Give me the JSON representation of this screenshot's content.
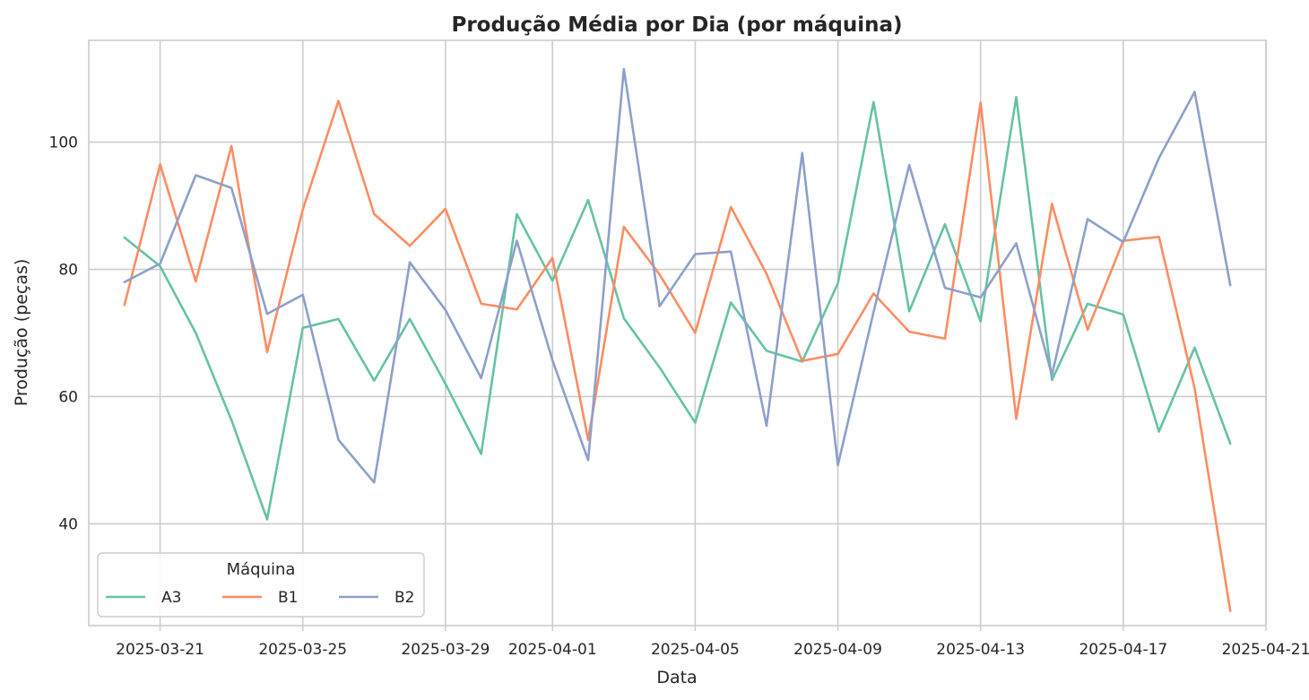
{
  "chart_data": {
    "type": "line",
    "title": "Produção Média por Dia (por máquina)",
    "xlabel": "Data",
    "ylabel": "Produção (peças)",
    "x_start": "2025-03-20",
    "x_range": [
      "2025-03-19",
      "2025-04-21"
    ],
    "xtick_labels": [
      "2025-03-21",
      "2025-03-25",
      "2025-03-29",
      "2025-04-01",
      "2025-04-05",
      "2025-04-09",
      "2025-04-13",
      "2025-04-17",
      "2025-04-21"
    ],
    "xtick_dates": [
      "2025-03-21",
      "2025-03-25",
      "2025-03-29",
      "2025-04-01",
      "2025-04-05",
      "2025-04-09",
      "2025-04-13",
      "2025-04-17",
      "2025-04-21"
    ],
    "ylim": [
      24,
      116
    ],
    "yticks": [
      40,
      60,
      80,
      100
    ],
    "grid": true,
    "legend": {
      "title": "Máquina",
      "placement": "bottom-left",
      "ncol": 3
    },
    "series": [
      {
        "name": "A3",
        "color": "#66c2a5",
        "values": [
          85,
          80.5,
          70,
          56.3,
          40.7,
          70.8,
          72.2,
          62.5,
          72.2,
          62,
          51,
          88.7,
          78.2,
          90.9,
          72.3,
          64.6,
          55.9,
          74.8,
          67.2,
          65.5,
          77.8,
          106.3,
          73.4,
          87.1,
          71.8,
          107.1,
          62.6,
          74.6,
          72.9,
          54.5,
          67.7,
          52.6
        ]
      },
      {
        "name": "B1",
        "color": "#fc8d62",
        "values": [
          74.4,
          96.5,
          78.1,
          99.4,
          67,
          89.4,
          106.5,
          88.7,
          83.7,
          89.5,
          74.6,
          73.7,
          81.8,
          53.2,
          86.7,
          79.2,
          70,
          89.8,
          79.3,
          65.6,
          66.7,
          76.2,
          70.2,
          69.1,
          106.2,
          56.5,
          90.3,
          70.5,
          84.5,
          85.1,
          61.3,
          26.3
        ]
      },
      {
        "name": "B2",
        "color": "#8da0cb",
        "values": [
          78,
          80.9,
          94.8,
          92.8,
          73,
          76,
          53.2,
          46.5,
          81.1,
          73.6,
          62.9,
          84.5,
          65.7,
          50,
          111.5,
          74.2,
          82.4,
          82.8,
          55.4,
          98.3,
          49.2,
          73.3,
          96.4,
          77.1,
          75.6,
          84.1,
          63.4,
          87.9,
          84.3,
          97.5,
          107.9,
          77.5
        ]
      }
    ]
  }
}
